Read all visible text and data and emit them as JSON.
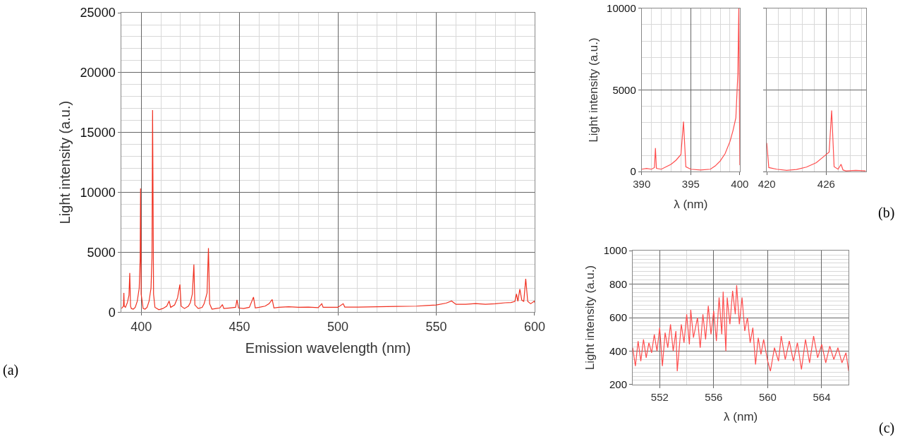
{
  "chart_data": [
    {
      "type": "line",
      "xlabel": "Emission wavelength (nm)",
      "ylabel": "Light intensity (a.u.)",
      "annotations": [
        "(a)"
      ],
      "xlim": [
        390,
        600
      ],
      "xticks": [
        400,
        450,
        500,
        550,
        600
      ],
      "ylim": [
        0,
        25000
      ],
      "yticks": [
        0,
        5000,
        10000,
        15000,
        20000,
        25000
      ],
      "grid": true,
      "series": [
        {
          "color": "#f03020",
          "x": [
            390,
            391,
            391.2,
            391.4,
            392,
            393,
            393.8,
            394.2,
            394.6,
            395,
            396,
            397,
            398,
            399,
            399.5,
            399.7,
            400,
            401,
            402,
            403,
            404,
            405,
            405.5,
            405.8,
            406.3,
            407,
            409,
            411,
            413,
            414.2,
            415,
            417,
            418.5,
            419.7,
            420.3,
            422,
            424,
            425,
            426,
            426.8,
            427.3,
            429,
            431,
            432,
            433.5,
            434.2,
            434.8,
            436,
            438,
            440,
            441.3,
            442,
            445,
            448,
            448.7,
            449.5,
            452,
            455,
            457.1,
            458,
            460,
            463,
            465,
            466.6,
            467.5,
            470,
            475,
            480,
            485,
            490,
            491.8,
            492.5,
            495,
            500,
            502.7,
            503.5,
            510,
            520,
            530,
            540,
            545,
            550,
            555,
            557.8,
            560,
            565,
            570,
            575,
            580,
            585,
            588,
            590,
            590.8,
            591.5,
            592.5,
            593.5,
            594.5,
            595.5,
            596.5,
            598,
            599.8,
            600
          ],
          "values": [
            300,
            500,
            1610,
            500,
            400,
            800,
            1400,
            3270,
            500,
            300,
            250,
            400,
            900,
            2000,
            4500,
            10330,
            1500,
            300,
            250,
            400,
            900,
            2000,
            4500,
            16870,
            1500,
            400,
            200,
            300,
            500,
            930,
            400,
            600,
            1200,
            2310,
            500,
            300,
            500,
            800,
            1500,
            3970,
            600,
            300,
            400,
            700,
            1600,
            5350,
            700,
            250,
            300,
            350,
            630,
            300,
            350,
            400,
            1030,
            350,
            300,
            400,
            1260,
            350,
            400,
            500,
            700,
            1050,
            350,
            400,
            450,
            400,
            420,
            380,
            700,
            400,
            400,
            400,
            700,
            420,
            420,
            450,
            480,
            500,
            550,
            600,
            750,
            930,
            650,
            650,
            720,
            650,
            700,
            780,
            800,
            900,
            1520,
            900,
            1920,
            1000,
            900,
            2780,
            900,
            700,
            910,
            800
          ]
        }
      ]
    },
    {
      "type": "line",
      "xlabel": "λ (nm)",
      "ylabel": "Light intensity (a.u.)",
      "annotations": [
        "(b)"
      ],
      "xlim": [
        390,
        400
      ],
      "xticks": [
        390,
        395,
        400
      ],
      "ylim": [
        0,
        10000
      ],
      "yticks": [
        0,
        5000,
        10000
      ],
      "grid": true,
      "series": [
        {
          "color": "#ff4d4d",
          "x": [
            390,
            390.5,
            391,
            391.3,
            391.4,
            391.5,
            392,
            392.5,
            393,
            393.5,
            394,
            394.26,
            394.5,
            395,
            396,
            397,
            397.5,
            398,
            398.5,
            399,
            399.3,
            399.6,
            399.8,
            399.9,
            400
          ],
          "values": [
            150,
            200,
            150,
            250,
            1440,
            200,
            150,
            300,
            450,
            700,
            1050,
            3060,
            300,
            150,
            100,
            150,
            350,
            650,
            1100,
            1850,
            2500,
            3300,
            6000,
            10000,
            400
          ]
        }
      ]
    },
    {
      "type": "line",
      "xlim": [
        420,
        430
      ],
      "xticks": [
        420,
        426
      ],
      "ylim": [
        0,
        10000
      ],
      "yticks": [
        0,
        5000,
        10000
      ],
      "tick_labels": "x",
      "grid": true,
      "series": [
        {
          "color": "#ff4d4d",
          "x": [
            420,
            420.2,
            421,
            422,
            423,
            424,
            425,
            425.7,
            426.3,
            426.55,
            426.8,
            427.2,
            427.5,
            427.7,
            428,
            429,
            430
          ],
          "values": [
            1760,
            250,
            150,
            80,
            130,
            280,
            550,
            900,
            1200,
            3750,
            300,
            150,
            450,
            100,
            50,
            80,
            50
          ]
        }
      ]
    },
    {
      "type": "line",
      "xlabel": "λ (nm)",
      "ylabel": "Light intensity (a.u.)",
      "annotations": [
        "(c)"
      ],
      "xlim": [
        550,
        566
      ],
      "xticks": [
        552,
        556,
        560,
        564
      ],
      "ylim": [
        200,
        1000
      ],
      "yticks": [
        200,
        400,
        600,
        800,
        1000
      ],
      "grid": true,
      "series": [
        {
          "color": "#ff4d4d",
          "x": [
            550,
            550.2,
            550.4,
            550.6,
            550.8,
            551,
            551.2,
            551.4,
            551.6,
            551.8,
            552,
            552.2,
            552.4,
            552.6,
            552.8,
            553,
            553.2,
            553.3,
            553.6,
            553.8,
            554,
            554.2,
            554.3,
            554.5,
            554.8,
            555,
            555.2,
            555.4,
            555.6,
            555.8,
            556,
            556.2,
            556.4,
            556.6,
            556.7,
            556.9,
            557,
            557.2,
            557.4,
            557.6,
            557.7,
            557.9,
            558.1,
            558.3,
            558.5,
            558.7,
            558.9,
            559.1,
            559.3,
            559.5,
            559.7,
            560,
            560.2,
            560.5,
            560.8,
            561,
            561.3,
            561.6,
            561.9,
            562.2,
            562.5,
            562.8,
            563.1,
            563.4,
            563.7,
            564,
            564.3,
            564.6,
            564.9,
            565.2,
            565.5,
            565.8,
            566
          ],
          "values": [
            420,
            310,
            460,
            340,
            470,
            360,
            450,
            390,
            500,
            400,
            540,
            310,
            510,
            420,
            560,
            400,
            520,
            280,
            560,
            450,
            620,
            440,
            646,
            480,
            600,
            420,
            620,
            470,
            670,
            500,
            640,
            460,
            720,
            500,
            755,
            400,
            720,
            560,
            760,
            620,
            794,
            560,
            720,
            520,
            600,
            450,
            540,
            320,
            480,
            380,
            470,
            340,
            280,
            420,
            340,
            490,
            350,
            460,
            340,
            450,
            290,
            470,
            330,
            490,
            360,
            440,
            330,
            430,
            350,
            420,
            330,
            390,
            280
          ]
        }
      ]
    }
  ]
}
